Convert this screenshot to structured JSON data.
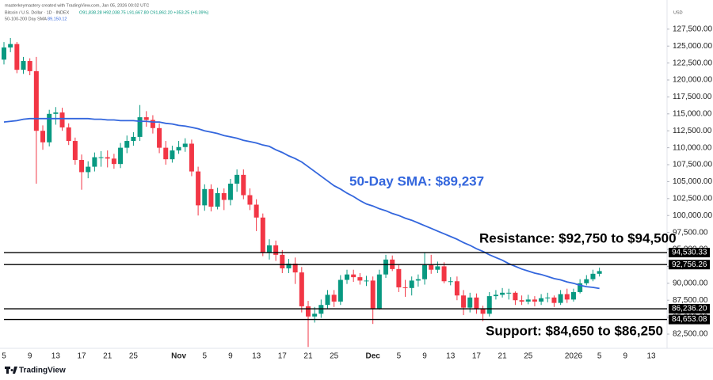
{
  "chart_data": {
    "type": "candlestick",
    "attribution": "masterkeymastery created with TradingView.com, Jan 05, 2026 00:02 UTC",
    "title": "Bitcoin / U.S. Dollar · 1D · INDEX",
    "ohlc_summary": "O91,838.28 H92,038.75 L91,667.80 C91,862.20 +353.25 (+0.39%)",
    "indicator_label": "50-100-200 Day SMA",
    "indicator_value": "89,150.12",
    "currency": "USD",
    "brand": "TradingView",
    "up_color": "#089981",
    "down_color": "#f23645",
    "sma_color": "#3366dd",
    "categories": [
      "5",
      null,
      null,
      null,
      "9",
      null,
      null,
      null,
      "13",
      null,
      null,
      null,
      "17",
      null,
      null,
      null,
      "21",
      null,
      null,
      null,
      "25",
      null,
      null,
      null,
      null,
      null,
      null,
      "Nov",
      null,
      null,
      null,
      "5",
      null,
      null,
      null,
      "9",
      null,
      null,
      null,
      "13",
      null,
      null,
      null,
      "17",
      null,
      null,
      null,
      "21",
      null,
      null,
      null,
      "25",
      null,
      null,
      null,
      null,
      null,
      "Dec",
      null,
      null,
      null,
      "5",
      null,
      null,
      null,
      "9",
      null,
      null,
      null,
      "13",
      null,
      null,
      null,
      "17",
      null,
      null,
      null,
      "21",
      null,
      null,
      null,
      "25",
      null,
      null,
      null,
      null,
      null,
      null,
      "2026",
      null,
      null,
      null,
      "5",
      null,
      null,
      null,
      "9",
      null,
      null,
      null,
      "13"
    ],
    "open": [
      123000,
      124800,
      125300,
      121500,
      122800,
      121300,
      112500,
      110800,
      115000,
      115200,
      113000,
      111000,
      108200,
      106400,
      107200,
      108600,
      108600,
      108400,
      107600,
      110000,
      111000,
      111600,
      114500,
      114100,
      112900,
      110000,
      108300,
      109600,
      110100,
      110600,
      106500,
      101500,
      103900,
      101300,
      103300,
      102300,
      104700,
      106000,
      103000,
      101600,
      99700,
      94500,
      95600,
      94200,
      92200,
      92900,
      91600,
      86600,
      85100,
      85500,
      86800,
      88300,
      87300,
      90500,
      91300,
      90900,
      90400,
      90400,
      86300,
      91300,
      93500,
      92100,
      89400,
      89300,
      90400,
      90600,
      92700,
      92000,
      92500,
      90300,
      90300,
      88200,
      86400,
      87900,
      86200,
      85500,
      88100,
      88300,
      88600,
      88600,
      87500,
      87300,
      87600,
      87300,
      87800,
      87900,
      87100,
      88400,
      87600,
      88700,
      90000,
      90600,
      91400,
      null,
      null,
      null,
      null,
      null,
      null,
      null,
      null
    ],
    "high": [
      125600,
      126200,
      125600,
      123400,
      123200,
      123400,
      113300,
      115600,
      116000,
      115900,
      113600,
      111500,
      109000,
      108000,
      109300,
      109500,
      109600,
      109100,
      110700,
      111800,
      112300,
      116300,
      115400,
      114800,
      113600,
      111000,
      110300,
      111000,
      111400,
      111200,
      107200,
      104600,
      104600,
      104100,
      104000,
      105400,
      106800,
      106800,
      104000,
      102400,
      100300,
      96500,
      96300,
      94900,
      93600,
      93800,
      92400,
      87400,
      86500,
      87600,
      89000,
      89000,
      91200,
      92000,
      92000,
      91500,
      91100,
      91000,
      92000,
      94200,
      94100,
      92700,
      90500,
      91000,
      91300,
      94500,
      94200,
      93200,
      93100,
      90900,
      91000,
      89000,
      88600,
      88500,
      86700,
      88700,
      89000,
      89300,
      89200,
      88800,
      88200,
      88300,
      88100,
      88400,
      88600,
      88200,
      89000,
      89200,
      89200,
      90600,
      91200,
      92000,
      92300,
      null,
      null,
      null,
      null,
      null,
      null,
      null,
      null
    ],
    "low": [
      122300,
      124100,
      121000,
      120900,
      120700,
      104700,
      109700,
      110200,
      113400,
      112500,
      110400,
      107500,
      103800,
      105500,
      106500,
      107200,
      107100,
      106900,
      107000,
      109200,
      110300,
      111000,
      113100,
      112100,
      109200,
      107500,
      107800,
      109100,
      109400,
      105800,
      100000,
      100700,
      100600,
      100900,
      100800,
      101500,
      103500,
      102400,
      100800,
      97700,
      94000,
      93500,
      93300,
      91500,
      91500,
      89900,
      85700,
      80600,
      84200,
      84900,
      86200,
      86500,
      86800,
      89900,
      90200,
      89800,
      89600,
      84000,
      86100,
      90800,
      91800,
      88700,
      88000,
      88200,
      89500,
      89800,
      91400,
      91500,
      90000,
      89700,
      87500,
      85300,
      85700,
      85500,
      84400,
      85100,
      87600,
      87900,
      87600,
      86800,
      86800,
      86900,
      86600,
      86800,
      87200,
      86500,
      86800,
      87100,
      87300,
      88500,
      89700,
      90300,
      91000,
      null,
      null,
      null,
      null,
      null,
      null,
      null,
      null
    ],
    "close": [
      124800,
      125300,
      121500,
      122800,
      121300,
      112500,
      110800,
      115000,
      115200,
      113000,
      111000,
      108200,
      106400,
      107200,
      108600,
      108600,
      108400,
      107600,
      110000,
      111000,
      111600,
      114500,
      114100,
      112900,
      110000,
      108300,
      109600,
      110100,
      110600,
      106500,
      101500,
      103900,
      101300,
      103300,
      102300,
      104700,
      106000,
      103000,
      101600,
      99700,
      94500,
      95600,
      94200,
      92200,
      92900,
      91600,
      86600,
      85100,
      85500,
      86800,
      88300,
      87300,
      90500,
      91300,
      90900,
      90400,
      90400,
      86300,
      91300,
      93500,
      92100,
      89400,
      89300,
      90400,
      90600,
      92700,
      92000,
      92500,
      90300,
      90300,
      88200,
      86400,
      87900,
      86200,
      85500,
      88100,
      88300,
      88600,
      88600,
      87500,
      87300,
      87600,
      87300,
      87800,
      87900,
      87100,
      88400,
      87600,
      88700,
      90000,
      90600,
      91400,
      91800,
      null,
      null,
      null,
      null,
      null,
      null,
      null,
      null
    ],
    "sma_values": [
      113800,
      113900,
      114000,
      114200,
      114300,
      114300,
      114300,
      114300,
      114300,
      114300,
      114300,
      114300,
      114300,
      114300,
      114200,
      114200,
      114100,
      114100,
      114000,
      114000,
      114000,
      113900,
      113900,
      113800,
      113800,
      113600,
      113500,
      113300,
      113200,
      113000,
      112800,
      112500,
      112300,
      112100,
      111800,
      111600,
      111400,
      111100,
      110900,
      110700,
      110400,
      110200,
      109700,
      109300,
      108800,
      108400,
      107900,
      107200,
      106500,
      105800,
      105100,
      104400,
      103900,
      103300,
      102800,
      102200,
      101700,
      101400,
      101000,
      100700,
      100300,
      100000,
      99600,
      99300,
      98900,
      98500,
      98100,
      97700,
      97300,
      96900,
      96500,
      96000,
      95600,
      95100,
      94700,
      94200,
      93800,
      93400,
      92900,
      92500,
      92100,
      91800,
      91500,
      91300,
      91000,
      90700,
      90500,
      90200,
      90000,
      89700,
      89500,
      89400,
      89237,
      null,
      null,
      null,
      null,
      null,
      null,
      null,
      null
    ],
    "ylim": [
      80400,
      131800
    ],
    "yticks": [
      {
        "value": 82500,
        "label": "82,500.00"
      },
      {
        "value": 85000,
        "label": "85,000.00"
      },
      {
        "value": 87500,
        "label": "87,500.00"
      },
      {
        "value": 90000,
        "label": "90,000.00"
      },
      {
        "value": 92500,
        "label": "92,500.00"
      },
      {
        "value": 95000,
        "label": "95,000.00"
      },
      {
        "value": 97500,
        "label": "97,500.00"
      },
      {
        "value": 100000,
        "label": "100,000.00"
      },
      {
        "value": 102500,
        "label": "102,500.00"
      },
      {
        "value": 105000,
        "label": "105,000.00"
      },
      {
        "value": 107500,
        "label": "107,500.00"
      },
      {
        "value": 110000,
        "label": "110,000.00"
      },
      {
        "value": 112500,
        "label": "112,500.00"
      },
      {
        "value": 115000,
        "label": "115,000.00"
      },
      {
        "value": 117500,
        "label": "117,500.00"
      },
      {
        "value": 120000,
        "label": "120,000.00"
      },
      {
        "value": 122500,
        "label": "122,500.00"
      },
      {
        "value": 125000,
        "label": "125,000.00"
      },
      {
        "value": 127500,
        "label": "127,500.00"
      }
    ],
    "grid": false,
    "levels": [
      {
        "value": 94530.33,
        "label": "94,530.33"
      },
      {
        "value": 92756.26,
        "label": "92,756.26"
      },
      {
        "value": 86236.2,
        "label": "86,236.20"
      },
      {
        "value": 84653.08,
        "label": "84,653.08"
      }
    ],
    "annotations": [
      "50-Day SMA: $89,237",
      "Resistance: $92,750 to $94,500",
      "Support: $84,650 to $86,250"
    ]
  }
}
